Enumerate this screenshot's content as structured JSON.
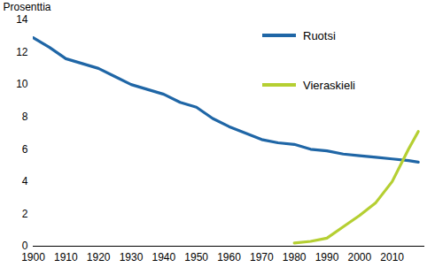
{
  "chart_data": {
    "type": "line",
    "y_label": "Prosenttia",
    "x": [
      1900,
      1905,
      1910,
      1915,
      1920,
      1925,
      1930,
      1935,
      1940,
      1945,
      1950,
      1955,
      1960,
      1965,
      1970,
      1975,
      1980,
      1985,
      1990,
      1995,
      2000,
      2005,
      2010,
      2015,
      2018
    ],
    "series": [
      {
        "name": "Ruotsi",
        "color": "#1f66a6",
        "values": [
          12.9,
          12.3,
          11.6,
          11.3,
          11.0,
          10.5,
          10.0,
          9.7,
          9.4,
          8.9,
          8.6,
          7.9,
          7.4,
          7.0,
          6.6,
          6.4,
          6.3,
          6.0,
          5.9,
          5.7,
          5.6,
          5.5,
          5.4,
          5.3,
          5.2
        ]
      },
      {
        "name": "Vieraskieli",
        "color": "#b5cf32",
        "values": [
          null,
          null,
          null,
          null,
          null,
          null,
          null,
          null,
          null,
          null,
          null,
          null,
          null,
          null,
          null,
          null,
          0.2,
          0.3,
          0.5,
          1.2,
          1.9,
          2.7,
          4.0,
          6.0,
          7.1
        ]
      }
    ],
    "xlim": [
      1900,
      2020
    ],
    "xticks": [
      1900,
      1910,
      1920,
      1930,
      1940,
      1950,
      1960,
      1970,
      1980,
      1990,
      2000,
      2010
    ],
    "ylim": [
      0,
      14
    ],
    "yticks": [
      0,
      2,
      4,
      6,
      8,
      10,
      12,
      14
    ],
    "grid": false,
    "legend": "top-right"
  }
}
